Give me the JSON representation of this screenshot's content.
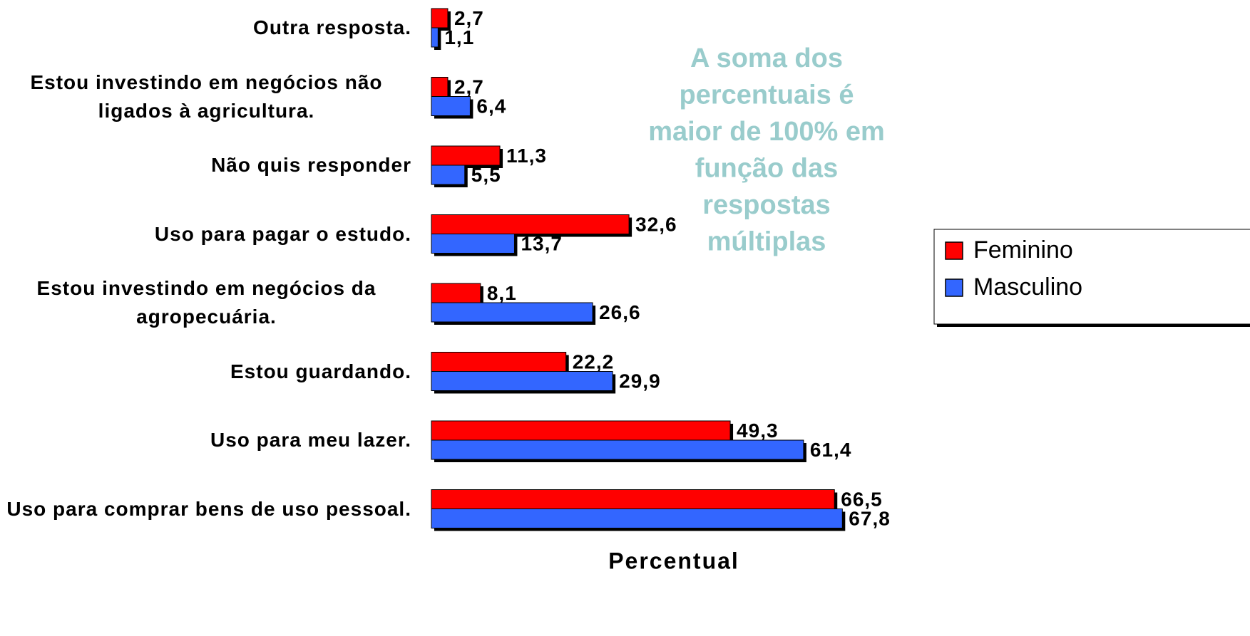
{
  "chart_data": {
    "type": "bar",
    "orientation": "horizontal",
    "categories": [
      "Outra resposta.",
      "Estou investindo em negócios não ligados à agricultura.",
      "Não quis responder",
      "Uso para pagar o estudo.",
      "Estou investindo em negócios da agropecuária.",
      "Estou guardando.",
      "Uso para meu lazer.",
      "Uso para comprar bens de uso pessoal."
    ],
    "series": [
      {
        "name": "Feminino",
        "color": "#ff0000",
        "values": [
          2.7,
          2.7,
          11.3,
          32.6,
          8.1,
          22.2,
          49.3,
          66.5
        ],
        "value_labels": [
          "2,7",
          "2,7",
          "11,3",
          "32,6",
          "8,1",
          "22,2",
          "49,3",
          "66,5"
        ]
      },
      {
        "name": "Masculino",
        "color": "#3366ff",
        "values": [
          1.1,
          6.4,
          5.5,
          13.7,
          26.6,
          29.9,
          61.4,
          67.8
        ],
        "value_labels": [
          "1,1",
          "6,4",
          "5,5",
          "13,7",
          "26,6",
          "29,9",
          "61,4",
          "67,8"
        ]
      }
    ],
    "xlabel": "Percentual",
    "annotation": [
      "A soma dos",
      "percentuais é",
      "maior de 100% em",
      "função das",
      "respostas",
      "múltiplas"
    ],
    "xlim": [
      0,
      100
    ],
    "legend": "right"
  }
}
